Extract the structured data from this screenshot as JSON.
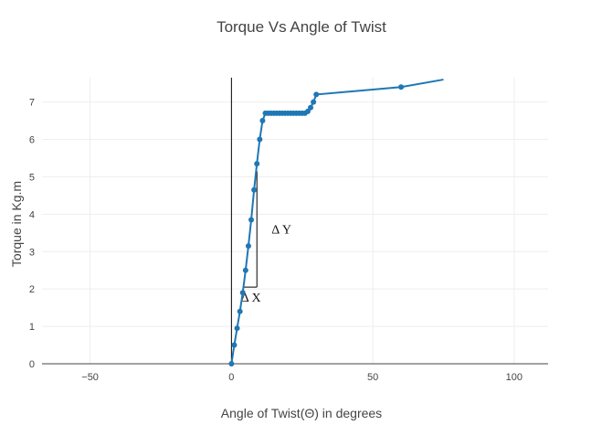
{
  "chart_data": {
    "type": "line",
    "title": "Torque Vs Angle of Twist",
    "xlabel": "Angle of Twist(Θ) in degrees",
    "ylabel": "Torque in Kg.m",
    "xlim": [
      -67,
      112
    ],
    "ylim": [
      0,
      7.65
    ],
    "x_ticks": [
      -50,
      0,
      50,
      100
    ],
    "x_tick_labels": [
      "−50",
      "0",
      "50",
      "100"
    ],
    "y_ticks": [
      0,
      1,
      2,
      3,
      4,
      5,
      6,
      7
    ],
    "y_tick_labels": [
      "0",
      "1",
      "2",
      "3",
      "4",
      "5",
      "6",
      "7"
    ],
    "grid": true,
    "legend": false,
    "series": [
      {
        "color": "#1f77b4",
        "x": [
          0,
          1,
          2,
          3,
          4,
          5,
          6,
          7,
          8,
          9,
          10,
          11,
          12,
          13,
          14,
          15,
          16,
          17,
          18,
          19,
          20,
          21,
          22,
          23,
          24,
          25,
          26,
          27,
          28,
          29,
          30,
          60,
          75
        ],
        "y": [
          0,
          0.5,
          0.95,
          1.4,
          1.9,
          2.5,
          3.15,
          3.85,
          4.65,
          5.35,
          6.0,
          6.5,
          6.7,
          6.7,
          6.7,
          6.7,
          6.7,
          6.7,
          6.7,
          6.7,
          6.7,
          6.7,
          6.7,
          6.7,
          6.7,
          6.7,
          6.7,
          6.75,
          6.85,
          7.0,
          7.2,
          7.4,
          7.6
        ],
        "marker_count": 32
      }
    ],
    "vertical_reference_line": {
      "x": 0,
      "color": "#000000"
    },
    "slope_triangle": {
      "x1": 4,
      "y1": 2.05,
      "x2": 9,
      "y2": 5.15,
      "labels": {
        "dy": "Δ Y",
        "dx": "Δ X"
      }
    }
  }
}
